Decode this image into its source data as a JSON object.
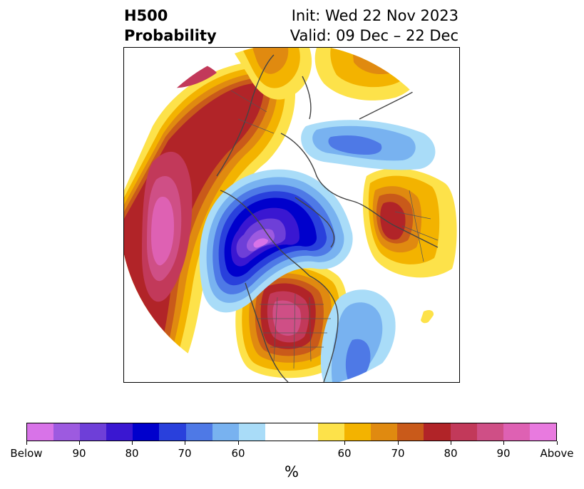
{
  "title": {
    "left_line1": "H500",
    "left_line2": "Probability",
    "right_line1": "Init: Wed 22 Nov 2023",
    "right_line2": "Valid: 09 Dec – 22 Dec"
  },
  "colorbar": {
    "colors": [
      "#d873e8",
      "#9d5ae0",
      "#6e3fd8",
      "#3a17d1",
      "#0000cc",
      "#2940dc",
      "#4e79e6",
      "#78b2f0",
      "#a9dcf8",
      "#ffffff",
      "#ffffff",
      "#fde24a",
      "#f3b300",
      "#e08a10",
      "#c95a1a",
      "#b12428",
      "#c2395a",
      "#cf4f86",
      "#de61b3",
      "#e87adf"
    ],
    "tick_labels": [
      "Below",
      "90",
      "80",
      "70",
      "60",
      "60",
      "70",
      "80",
      "90",
      "Above"
    ],
    "unit_label": "%"
  }
}
